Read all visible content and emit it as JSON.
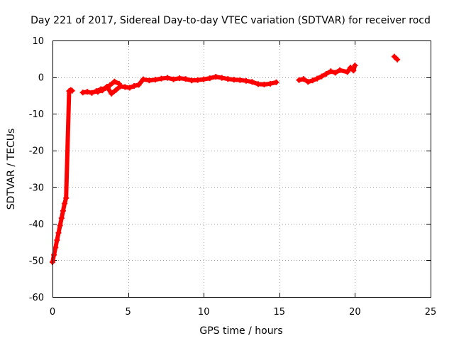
{
  "chart_data": {
    "type": "scatter",
    "title": "Day 221 of 2017, Sidereal Day-to-day VTEC variation (SDTVAR) for receiver rocd",
    "xlabel": "GPS time / hours",
    "ylabel": "SDTVAR / TECUs",
    "xlim": [
      0,
      25
    ],
    "ylim": [
      -60,
      10
    ],
    "xticks": [
      0,
      5,
      10,
      15,
      20,
      25
    ],
    "yticks": [
      10,
      0,
      -10,
      -20,
      -30,
      -40,
      -50,
      -60
    ],
    "grid": true,
    "marker": "plus",
    "series": [
      {
        "name": "SDTVAR",
        "color": "#ff0000",
        "x": [
          0.0,
          0.1,
          0.2,
          0.3,
          0.4,
          0.5,
          0.6,
          0.7,
          0.8,
          0.9,
          1.1,
          1.2,
          1.3,
          2.0,
          2.3,
          2.6,
          2.9,
          3.2,
          3.5,
          3.8,
          4.1,
          4.4,
          3.0,
          3.3,
          3.6,
          3.9,
          4.2,
          4.5,
          4.8,
          5.1,
          5.4,
          5.7,
          6.0,
          6.4,
          6.8,
          7.2,
          7.6,
          8.0,
          8.4,
          8.8,
          9.2,
          9.6,
          10.0,
          10.4,
          10.8,
          11.2,
          11.6,
          12.0,
          12.4,
          12.8,
          13.2,
          13.6,
          14.0,
          14.4,
          14.8,
          16.3,
          16.6,
          16.9,
          17.2,
          17.5,
          17.8,
          18.1,
          18.4,
          18.7,
          19.0,
          19.5,
          19.7,
          19.9,
          20.0,
          22.6,
          22.8
        ],
        "y": [
          -50.5,
          -48.5,
          -46.5,
          -44.5,
          -42.5,
          -40.5,
          -38.5,
          -36.5,
          -34.5,
          -33.0,
          -3.8,
          -3.5,
          -3.7,
          -4.2,
          -4.0,
          -4.3,
          -3.8,
          -3.3,
          -3.0,
          -2.2,
          -1.2,
          -1.8,
          -4.0,
          -3.6,
          -2.6,
          -4.5,
          -3.5,
          -2.5,
          -2.7,
          -2.9,
          -2.4,
          -2.1,
          -0.6,
          -0.9,
          -0.7,
          -0.4,
          -0.2,
          -0.6,
          -0.3,
          -0.5,
          -0.9,
          -0.8,
          -0.6,
          -0.3,
          0.1,
          -0.2,
          -0.5,
          -0.7,
          -0.8,
          -1.0,
          -1.3,
          -1.9,
          -2.0,
          -1.8,
          -1.4,
          -0.8,
          -0.5,
          -1.3,
          -0.9,
          -0.4,
          0.2,
          0.9,
          1.6,
          1.2,
          1.9,
          1.4,
          2.6,
          1.8,
          3.2,
          5.6,
          4.8
        ]
      }
    ]
  }
}
